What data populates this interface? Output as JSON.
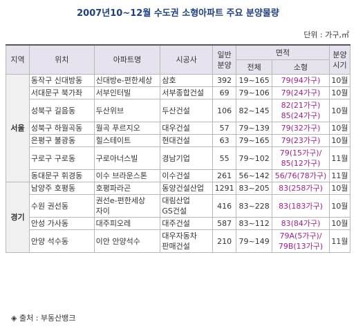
{
  "title": "2007년10~12월 수도권 소형아파트 주요 분양물량",
  "unit": "단위 : 가구,㎡",
  "table": {
    "header": {
      "region": "지역",
      "location": "위치",
      "apartment": "아파트명",
      "builder": "시공사",
      "supply": [
        "일반",
        "분양"
      ],
      "area": "면적",
      "area_total": "전체",
      "area_small": "소형",
      "timing": [
        "분양",
        "시기"
      ]
    },
    "groups": [
      {
        "region": "서울",
        "rows": [
          [
            [
              "동작구 신대방동"
            ],
            [
              "신대방e-편한세상"
            ],
            [
              "삼호"
            ],
            [
              "392"
            ],
            [
              "19~165"
            ],
            [
              "79(94가구)"
            ],
            [
              "10월"
            ]
          ],
          [
            [
              "서대문구 북가좌"
            ],
            [
              "서부인터빌"
            ],
            [
              "서부종합건설"
            ],
            [
              "69"
            ],
            [
              "79~106"
            ],
            [
              "79(24가구)"
            ],
            [
              "10월"
            ]
          ],
          [
            [
              "성북구 길음동"
            ],
            [
              "두산위브"
            ],
            [
              "두산건설"
            ],
            [
              "106"
            ],
            [
              "82~145"
            ],
            [
              "82(21가구)",
              "85(24가구)"
            ],
            [
              "10월"
            ]
          ],
          [
            [
              "성북구 하월곡동"
            ],
            [
              "월곡 푸르지오"
            ],
            [
              "대우건설"
            ],
            [
              "57"
            ],
            [
              "79~139"
            ],
            [
              "79(32가구)"
            ],
            [
              "10월"
            ]
          ],
          [
            [
              "은평구 불광동"
            ],
            [
              "힐스테이트"
            ],
            [
              "현대건설"
            ],
            [
              "63"
            ],
            [
              "79~165"
            ],
            [
              "79(23가구)"
            ],
            [
              "10월"
            ]
          ],
          [
            [
              "구로구 구로동"
            ],
            [
              "구로아너스빌"
            ],
            [
              "경남기업"
            ],
            [
              "55"
            ],
            [
              "79~102"
            ],
            [
              "79(15가구)/",
              "85(12가구)"
            ],
            [
              "11월"
            ]
          ],
          [
            [
              "동대문구 휘경동"
            ],
            [
              "이수 브라운스톤"
            ],
            [
              "이수건설"
            ],
            [
              "261"
            ],
            [
              "56~142"
            ],
            [
              "56/76(78가구)"
            ],
            [
              "11월"
            ]
          ]
        ]
      },
      {
        "region": "경기",
        "rows": [
          [
            [
              "남양주 호평동"
            ],
            [
              "호평파라곤"
            ],
            [
              "동양건설산업"
            ],
            [
              "1291"
            ],
            [
              "83~205"
            ],
            [
              "83(258가구)"
            ],
            [
              "10월"
            ]
          ],
          [
            [
              "수원 권선동"
            ],
            [
              "권선e-편한세상",
              "자이"
            ],
            [
              "대림산업",
              "GS건설"
            ],
            [
              "416"
            ],
            [
              "83~228"
            ],
            [
              "83(183가구)"
            ],
            [
              "10월"
            ]
          ],
          [
            [
              "안성 가사동"
            ],
            [
              "대주피오레"
            ],
            [
              "대주건설"
            ],
            [
              "587"
            ],
            [
              "83~112"
            ],
            [
              "83(84가구)"
            ],
            [
              "10월"
            ]
          ],
          [
            [
              "안양 석수동"
            ],
            [
              "이안 안양석수"
            ],
            [
              "대우자동차",
              "판매건설"
            ],
            [
              "210"
            ],
            [
              "79~149"
            ],
            [
              "79A(5가구)/",
              "79B(13가구)"
            ],
            [
              "11월"
            ]
          ]
        ]
      }
    ]
  },
  "source": "◈ 출처 : 부동산뱅크"
}
